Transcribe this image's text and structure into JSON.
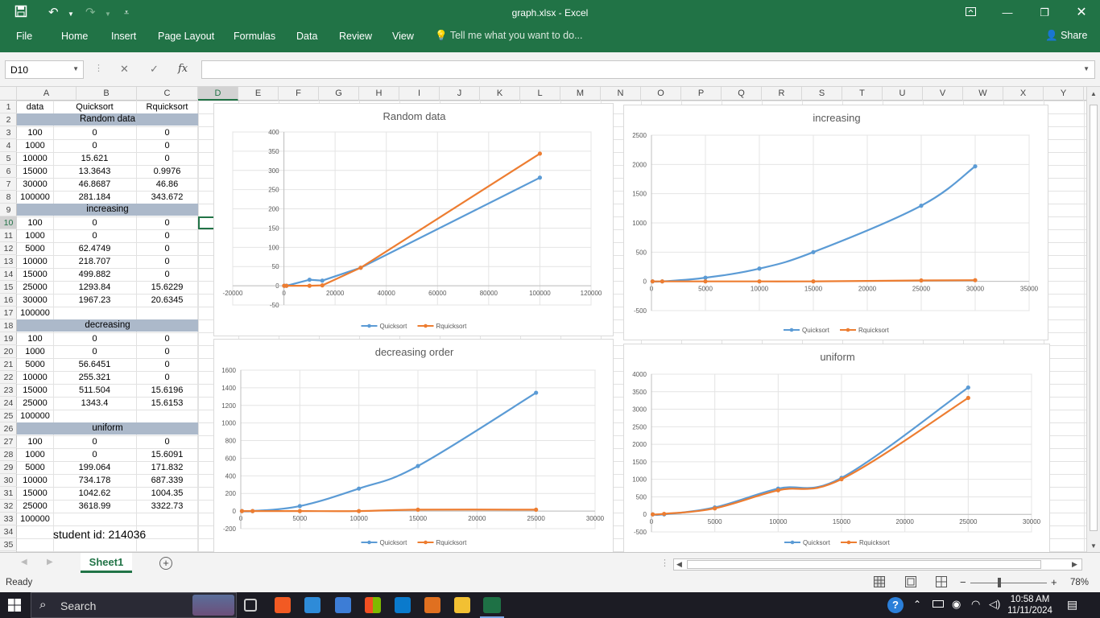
{
  "window": {
    "title": "graph.xlsx - Excel"
  },
  "ribbon": {
    "tabs": [
      "File",
      "Home",
      "Insert",
      "Page Layout",
      "Formulas",
      "Data",
      "Review",
      "View"
    ],
    "tell_me": "Tell me what you want to do...",
    "share": "Share"
  },
  "formula_bar": {
    "name_box": "D10",
    "fx": "fx",
    "content": ""
  },
  "columns": [
    "A",
    "B",
    "C",
    "D",
    "E",
    "F",
    "G",
    "H",
    "I",
    "J",
    "K",
    "L",
    "M",
    "N",
    "O",
    "P",
    "Q",
    "R",
    "S",
    "T",
    "U",
    "V",
    "W",
    "X",
    "Y"
  ],
  "rows": [
    "1",
    "2",
    "3",
    "4",
    "5",
    "6",
    "7",
    "8",
    "9",
    "10",
    "11",
    "12",
    "13",
    "14",
    "15",
    "16",
    "17",
    "18",
    "19",
    "20",
    "21",
    "22",
    "23",
    "24",
    "25",
    "26",
    "27",
    "28",
    "29",
    "30",
    "31",
    "32",
    "33",
    "34",
    "35"
  ],
  "selected": {
    "column": "D",
    "row": "10"
  },
  "sheet": {
    "header": [
      "data",
      "Quicksort",
      "Rquicksort"
    ],
    "sections": [
      {
        "label": "Random data",
        "row": 2
      },
      {
        "label": "increasing",
        "row": 9
      },
      {
        "label": "decreasing",
        "row": 18
      },
      {
        "label": "uniform",
        "row": 26
      }
    ],
    "data_rows": [
      {
        "r": 3,
        "a": "100",
        "b": "0",
        "c": "0"
      },
      {
        "r": 4,
        "a": "1000",
        "b": "0",
        "c": "0"
      },
      {
        "r": 5,
        "a": "10000",
        "b": "15.621",
        "c": "0"
      },
      {
        "r": 6,
        "a": "15000",
        "b": "13.3643",
        "c": "0.9976"
      },
      {
        "r": 7,
        "a": "30000",
        "b": "46.8687",
        "c": "46.86"
      },
      {
        "r": 8,
        "a": "100000",
        "b": "281.184",
        "c": "343.672"
      },
      {
        "r": 10,
        "a": "100",
        "b": "0",
        "c": "0"
      },
      {
        "r": 11,
        "a": "1000",
        "b": "0",
        "c": "0"
      },
      {
        "r": 12,
        "a": "5000",
        "b": "62.4749",
        "c": "0"
      },
      {
        "r": 13,
        "a": "10000",
        "b": "218.707",
        "c": "0"
      },
      {
        "r": 14,
        "a": "15000",
        "b": "499.882",
        "c": "0"
      },
      {
        "r": 15,
        "a": "25000",
        "b": "1293.84",
        "c": "15.6229"
      },
      {
        "r": 16,
        "a": "30000",
        "b": "1967.23",
        "c": "20.6345"
      },
      {
        "r": 17,
        "a": "100000",
        "b": "",
        "c": ""
      },
      {
        "r": 19,
        "a": "100",
        "b": "0",
        "c": "0"
      },
      {
        "r": 20,
        "a": "1000",
        "b": "0",
        "c": "0"
      },
      {
        "r": 21,
        "a": "5000",
        "b": "56.6451",
        "c": "0"
      },
      {
        "r": 22,
        "a": "10000",
        "b": "255.321",
        "c": "0"
      },
      {
        "r": 23,
        "a": "15000",
        "b": "511.504",
        "c": "15.6196"
      },
      {
        "r": 24,
        "a": "25000",
        "b": "1343.4",
        "c": "15.6153"
      },
      {
        "r": 25,
        "a": "100000",
        "b": "",
        "c": ""
      },
      {
        "r": 27,
        "a": "100",
        "b": "0",
        "c": "0"
      },
      {
        "r": 28,
        "a": "1000",
        "b": "0",
        "c": "15.6091"
      },
      {
        "r": 29,
        "a": "5000",
        "b": "199.064",
        "c": "171.832"
      },
      {
        "r": 30,
        "a": "10000",
        "b": "734.178",
        "c": "687.339"
      },
      {
        "r": 31,
        "a": "15000",
        "b": "1042.62",
        "c": "1004.35"
      },
      {
        "r": 32,
        "a": "25000",
        "b": "3618.99",
        "c": "3322.73"
      },
      {
        "r": 33,
        "a": "100000",
        "b": "",
        "c": ""
      }
    ],
    "student_id": "student id: 214036"
  },
  "chart_data": [
    {
      "type": "line",
      "title": "Random data",
      "x": [
        100,
        1000,
        10000,
        15000,
        30000,
        100000
      ],
      "series": [
        {
          "name": "Quicksort",
          "color": "#5b9bd5",
          "values": [
            0,
            0,
            15.621,
            13.3643,
            46.8687,
            281.184
          ]
        },
        {
          "name": "Rquicksort",
          "color": "#ed7d31",
          "values": [
            0,
            0,
            0,
            0.9976,
            46.86,
            343.672
          ]
        }
      ],
      "xlim": [
        -20000,
        120000
      ],
      "ylim": [
        -50,
        400
      ],
      "xticks": [
        "-20000",
        "0",
        "20000",
        "40000",
        "60000",
        "80000",
        "100000",
        "120000"
      ],
      "yticks": [
        "-50",
        "0",
        "50",
        "100",
        "150",
        "200",
        "250",
        "300",
        "350",
        "400"
      ],
      "legend": "bottom"
    },
    {
      "type": "line",
      "title": "increasing",
      "x": [
        100,
        1000,
        5000,
        10000,
        15000,
        25000,
        30000
      ],
      "series": [
        {
          "name": "Quicksort",
          "color": "#5b9bd5",
          "values": [
            0,
            0,
            62.4749,
            218.707,
            499.882,
            1293.84,
            1967.23
          ]
        },
        {
          "name": "Rquicksort",
          "color": "#ed7d31",
          "values": [
            0,
            0,
            0,
            0,
            0,
            15.6229,
            20.6345
          ]
        }
      ],
      "xlim": [
        0,
        35000
      ],
      "ylim": [
        -500,
        2500
      ],
      "xticks": [
        "0",
        "5000",
        "10000",
        "15000",
        "20000",
        "25000",
        "30000",
        "35000"
      ],
      "yticks": [
        "-500",
        "0",
        "500",
        "1000",
        "1500",
        "2000",
        "2500"
      ],
      "legend": "bottom"
    },
    {
      "type": "line",
      "title": "decreasing order",
      "x": [
        100,
        1000,
        5000,
        10000,
        15000,
        25000
      ],
      "series": [
        {
          "name": "Quicksort",
          "color": "#5b9bd5",
          "values": [
            0,
            0,
            56.6451,
            255.321,
            511.504,
            1343.4
          ]
        },
        {
          "name": "Rquicksort",
          "color": "#ed7d31",
          "values": [
            0,
            0,
            0,
            0,
            15.6196,
            15.6153
          ]
        }
      ],
      "xlim": [
        0,
        30000
      ],
      "ylim": [
        -200,
        1600
      ],
      "xticks": [
        "0",
        "5000",
        "10000",
        "15000",
        "20000",
        "25000",
        "30000"
      ],
      "yticks": [
        "-200",
        "0",
        "200",
        "400",
        "600",
        "800",
        "1000",
        "1200",
        "1400",
        "1600"
      ],
      "legend": "bottom"
    },
    {
      "type": "line",
      "title": "uniform",
      "x": [
        100,
        1000,
        5000,
        10000,
        15000,
        25000
      ],
      "series": [
        {
          "name": "Quicksort",
          "color": "#5b9bd5",
          "values": [
            0,
            0,
            199.064,
            734.178,
            1042.62,
            3618.99
          ]
        },
        {
          "name": "Rquicksort",
          "color": "#ed7d31",
          "values": [
            0,
            15.6091,
            171.832,
            687.339,
            1004.35,
            3322.73
          ]
        }
      ],
      "xlim": [
        0,
        30000
      ],
      "ylim": [
        -500,
        4000
      ],
      "xticks": [
        "0",
        "5000",
        "10000",
        "15000",
        "20000",
        "25000",
        "30000"
      ],
      "yticks": [
        "-500",
        "0",
        "500",
        "1000",
        "1500",
        "2000",
        "2500",
        "3000",
        "3500",
        "4000"
      ],
      "legend": "bottom"
    }
  ],
  "sheet_tabs": {
    "active": "Sheet1"
  },
  "status": {
    "mode": "Ready",
    "zoom": "78%"
  },
  "taskbar": {
    "search": "Search",
    "time": "10:58 AM",
    "date": "11/11/2024"
  }
}
